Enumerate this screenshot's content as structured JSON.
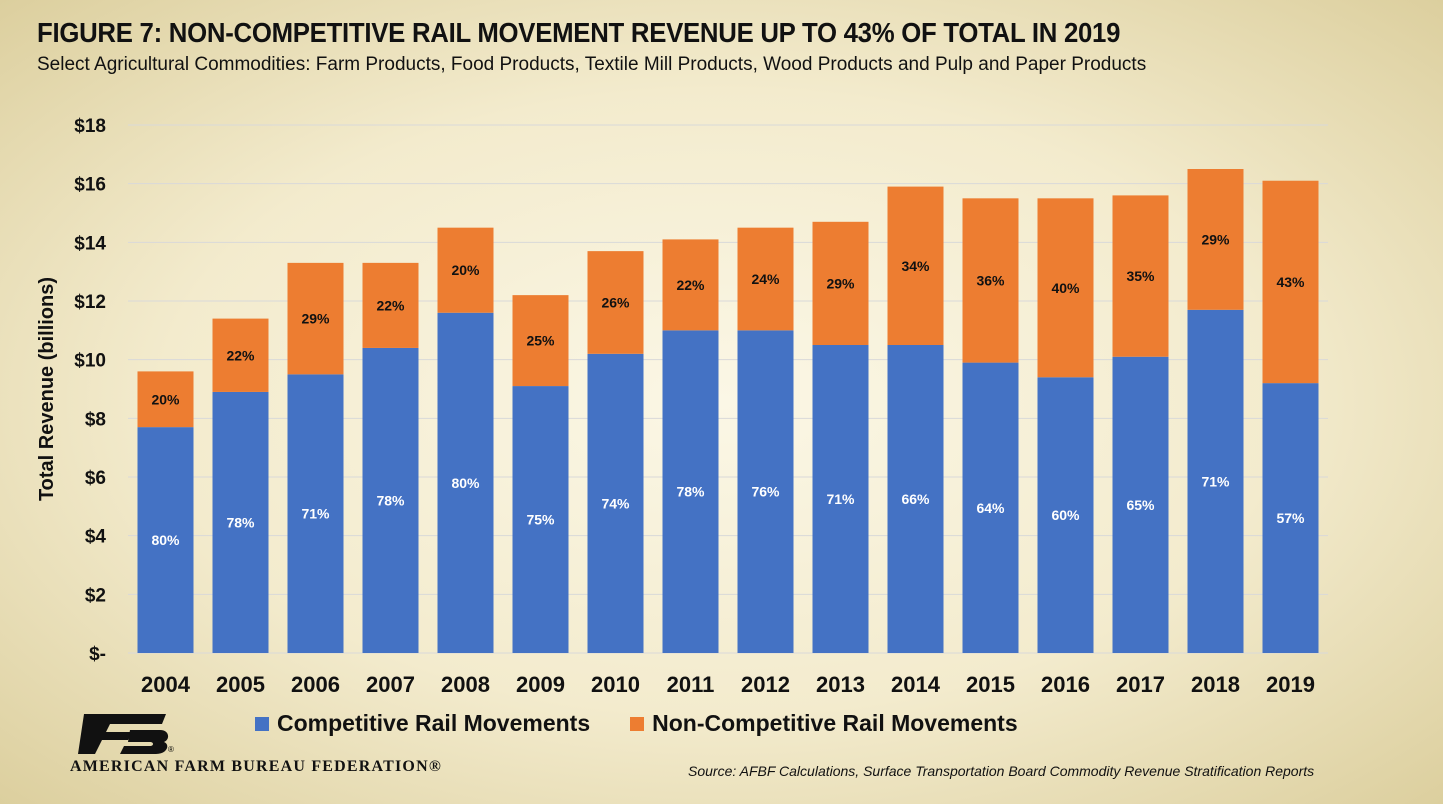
{
  "header": {
    "title": "FIGURE 7: NON-COMPETITIVE RAIL MOVEMENT REVENUE UP TO 43% OF TOTAL IN 2019",
    "subtitle": "Select Agricultural Commodities: Farm Products, Food Products, Textile Mill Products, Wood Products and Pulp and Paper Products"
  },
  "footer": {
    "org_name": "AMERICAN FARM BUREAU FEDERATION®",
    "logo_text": "FB",
    "source": "Source: AFBF Calculations, Surface Transportation Board Commodity Revenue Stratification Reports"
  },
  "colors": {
    "competitive": "#4472c4",
    "non_competitive": "#ed7d31",
    "grid": "#d9d9d9",
    "text": "#111111",
    "logo": "#111111"
  },
  "chart_data": {
    "type": "bar",
    "stacked": true,
    "title": "FIGURE 7: NON-COMPETITIVE RAIL MOVEMENT REVENUE UP TO 43% OF TOTAL IN 2019",
    "subtitle": "Select Agricultural Commodities: Farm Products, Food Products, Textile Mill Products, Wood Products and Pulp and Paper Products",
    "xlabel": "",
    "ylabel": "Total Revenue (billions)",
    "ylim": [
      0,
      18
    ],
    "yticks": [
      0,
      2,
      4,
      6,
      8,
      10,
      12,
      14,
      16,
      18
    ],
    "ytick_labels": [
      "$-",
      "$2",
      "$4",
      "$6",
      "$8",
      "$10",
      "$12",
      "$14",
      "$16",
      "$18"
    ],
    "grid": true,
    "legend_position": "bottom",
    "categories": [
      "2004",
      "2005",
      "2006",
      "2007",
      "2008",
      "2009",
      "2010",
      "2011",
      "2012",
      "2013",
      "2014",
      "2015",
      "2016",
      "2017",
      "2018",
      "2019"
    ],
    "series": [
      {
        "name": "Competitive Rail Movements",
        "values": [
          7.7,
          8.9,
          9.5,
          10.4,
          11.6,
          9.1,
          10.2,
          11.0,
          11.0,
          10.5,
          10.5,
          9.9,
          9.4,
          10.1,
          11.7,
          9.2
        ],
        "labels": [
          "80%",
          "78%",
          "71%",
          "78%",
          "80%",
          "75%",
          "74%",
          "78%",
          "76%",
          "71%",
          "66%",
          "64%",
          "60%",
          "65%",
          "71%",
          "57%"
        ]
      },
      {
        "name": "Non-Competitive Rail Movements",
        "values": [
          1.9,
          2.5,
          3.8,
          2.9,
          2.9,
          3.1,
          3.5,
          3.1,
          3.5,
          4.2,
          5.4,
          5.6,
          6.1,
          5.5,
          4.8,
          6.9
        ],
        "labels": [
          "20%",
          "22%",
          "29%",
          "22%",
          "20%",
          "25%",
          "26%",
          "22%",
          "24%",
          "29%",
          "34%",
          "36%",
          "40%",
          "35%",
          "29%",
          "43%"
        ]
      }
    ]
  }
}
